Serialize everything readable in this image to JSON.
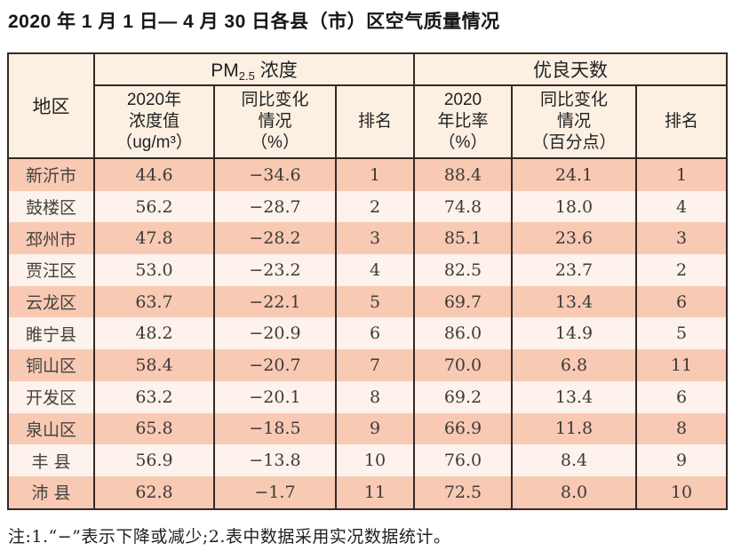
{
  "title": "2020 年 1 月 1 日— 4 月 30 日各县（市）区空气质量情况",
  "note": "注:1.“−”表示下降或减少;2.表中数据采用实况数据统计。",
  "colors": {
    "row_stripe_dark": "#f8c9b3",
    "row_stripe_light": "#fdf2ec",
    "header_background": "#fbf0e2",
    "table_border": "#362824",
    "page_background": "#ffffff",
    "text": "#3d3a38"
  },
  "table": {
    "header": {
      "region": "地区",
      "pm_group": {
        "prefix": "PM",
        "sub": "2.5",
        "suffix": " 浓度"
      },
      "days_group": "优良天数",
      "pm_value_lines": [
        "2020年",
        "浓度值",
        "（ug/m³）"
      ],
      "pm_change_lines": [
        "同比变化",
        "情况",
        "（%）"
      ],
      "pm_rank": "排名",
      "days_rate_lines": [
        "2020",
        "年比率",
        "（%）"
      ],
      "days_change_lines": [
        "同比变化",
        "情况",
        "（百分点）"
      ],
      "days_rank": "排名"
    }
  },
  "chart_data": {
    "type": "table",
    "title": "2020年1月1日—4月30日各县（市）区空气质量情况",
    "columns": [
      "地区",
      "PM2.5浓度 2020年浓度值（ug/m³）",
      "PM2.5浓度 同比变化情况（%）",
      "PM2.5浓度 排名",
      "优良天数 2020年比率（%）",
      "优良天数 同比变化情况（百分点）",
      "优良天数 排名"
    ],
    "row_keys": [
      "region",
      "pm_value",
      "pm_change",
      "pm_rank",
      "days_rate",
      "days_change",
      "days_rank"
    ],
    "rows": [
      {
        "region": "新沂市",
        "pm_value": "44.6",
        "pm_change": "−34.6",
        "pm_rank": "1",
        "days_rate": "88.4",
        "days_change": "24.1",
        "days_rank": "1"
      },
      {
        "region": "鼓楼区",
        "pm_value": "56.2",
        "pm_change": "−28.7",
        "pm_rank": "2",
        "days_rate": "74.8",
        "days_change": "18.0",
        "days_rank": "4"
      },
      {
        "region": "邳州市",
        "pm_value": "47.8",
        "pm_change": "−28.2",
        "pm_rank": "3",
        "days_rate": "85.1",
        "days_change": "23.6",
        "days_rank": "3"
      },
      {
        "region": "贾汪区",
        "pm_value": "53.0",
        "pm_change": "−23.2",
        "pm_rank": "4",
        "days_rate": "82.5",
        "days_change": "23.7",
        "days_rank": "2"
      },
      {
        "region": "云龙区",
        "pm_value": "63.7",
        "pm_change": "−22.1",
        "pm_rank": "5",
        "days_rate": "69.7",
        "days_change": "13.4",
        "days_rank": "6"
      },
      {
        "region": "睢宁县",
        "pm_value": "48.2",
        "pm_change": "−20.9",
        "pm_rank": "6",
        "days_rate": "86.0",
        "days_change": "14.9",
        "days_rank": "5"
      },
      {
        "region": "铜山区",
        "pm_value": "58.4",
        "pm_change": "−20.7",
        "pm_rank": "7",
        "days_rate": "70.0",
        "days_change": "6.8",
        "days_rank": "11"
      },
      {
        "region": "开发区",
        "pm_value": "63.2",
        "pm_change": "−20.1",
        "pm_rank": "8",
        "days_rate": "69.2",
        "days_change": "13.4",
        "days_rank": "6"
      },
      {
        "region": "泉山区",
        "pm_value": "65.8",
        "pm_change": "−18.5",
        "pm_rank": "9",
        "days_rate": "66.9",
        "days_change": "11.8",
        "days_rank": "8"
      },
      {
        "region": "丰 县",
        "pm_value": "56.9",
        "pm_change": "−13.8",
        "pm_rank": "10",
        "days_rate": "76.0",
        "days_change": "8.4",
        "days_rank": "9"
      },
      {
        "region": "沛 县",
        "pm_value": "62.8",
        "pm_change": "−1.7",
        "pm_rank": "11",
        "days_rate": "72.5",
        "days_change": "8.0",
        "days_rank": "10"
      }
    ]
  }
}
